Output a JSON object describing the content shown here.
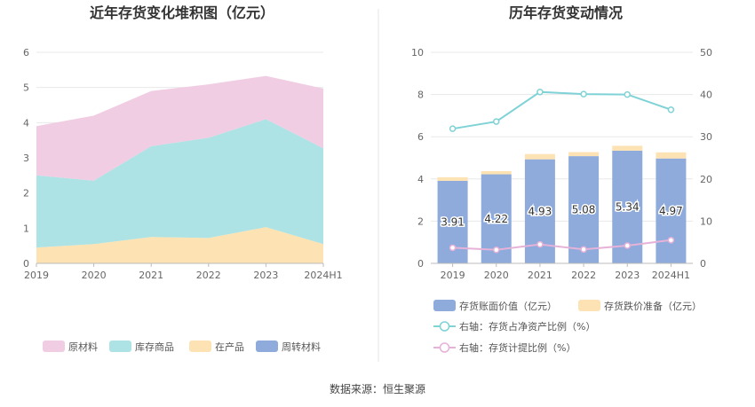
{
  "source_text": "数据来源：恒生聚源",
  "chart_data": [
    {
      "type": "area",
      "stacked": true,
      "title": "近年存货变化堆积图（亿元）",
      "categories": [
        "2019",
        "2020",
        "2021",
        "2022",
        "2023",
        "2024H1"
      ],
      "ylim": [
        0,
        6
      ],
      "yticks": [
        "0",
        "1",
        "2",
        "3",
        "4",
        "5",
        "6"
      ],
      "grid": true,
      "legend_position": "bottom",
      "series": [
        {
          "name": "在产品",
          "color": "#fde2b3",
          "values": [
            0.45,
            0.55,
            0.75,
            0.72,
            1.03,
            0.55
          ]
        },
        {
          "name": "库存商品",
          "color": "#ade3e4",
          "values": [
            2.05,
            1.8,
            2.58,
            2.85,
            3.07,
            2.72
          ]
        },
        {
          "name": "原材料",
          "color": "#f0cde3",
          "values": [
            1.4,
            1.85,
            1.57,
            1.52,
            1.23,
            1.7
          ]
        },
        {
          "name": "周转材料",
          "color": "#8eabdc",
          "values": [
            0,
            0,
            0,
            0,
            0,
            0
          ]
        }
      ],
      "legend_order": [
        "原材料",
        "库存商品",
        "在产品",
        "周转材料"
      ]
    },
    {
      "type": "bar",
      "title": "历年存货变动情况",
      "categories": [
        "2019",
        "2020",
        "2021",
        "2022",
        "2023",
        "2024H1"
      ],
      "ylim": [
        0,
        10
      ],
      "yticks": [
        "0",
        "2",
        "4",
        "6",
        "8",
        "10"
      ],
      "y2lim": [
        0,
        50
      ],
      "y2ticks": [
        "0",
        "10",
        "20",
        "30",
        "40",
        "50"
      ],
      "grid": true,
      "legend_position": "bottom",
      "bars": [
        {
          "name": "存货账面价值（亿元）",
          "color": "#8eabdc",
          "values": [
            3.91,
            4.22,
            4.93,
            5.08,
            5.34,
            4.97
          ],
          "labels": [
            "3.91",
            "4.22",
            "4.93",
            "5.08",
            "5.34",
            "4.97"
          ]
        },
        {
          "name": "存货跌价准备（亿元）",
          "color": "#fde2b3",
          "values": [
            0.17,
            0.15,
            0.25,
            0.19,
            0.23,
            0.29
          ]
        }
      ],
      "lines": [
        {
          "name": "右轴：存货占净资产比例（%）",
          "color": "#7fd2d6",
          "values": [
            31.9,
            33.6,
            40.6,
            40.1,
            40.0,
            36.4
          ]
        },
        {
          "name": "右轴：存货计提比例（%）",
          "color": "#e6b2d8",
          "values": [
            3.7,
            3.2,
            4.5,
            3.3,
            4.2,
            5.5
          ]
        }
      ]
    }
  ]
}
